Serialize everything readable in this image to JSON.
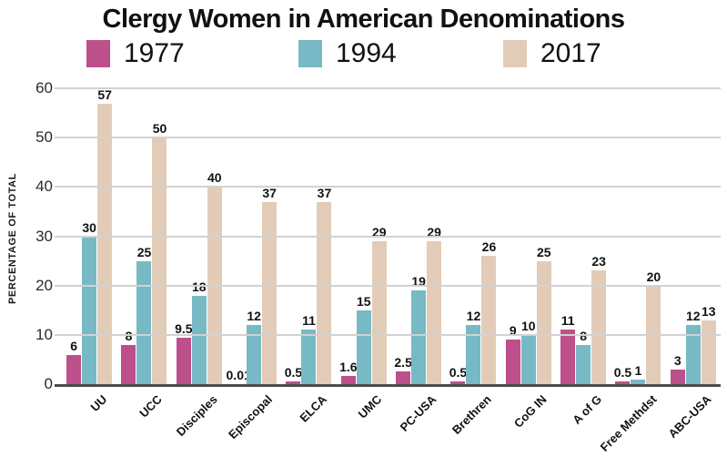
{
  "title": "Clergy Women in American Denominations",
  "y_axis_label": "PERCENTAGE OF TOTAL",
  "chart_data": {
    "type": "bar",
    "title": "Clergy Women in American Denominations",
    "xlabel": "",
    "ylabel": "PERCENTAGE OF TOTAL",
    "ylim": [
      0,
      60
    ],
    "yticks": [
      0,
      10,
      20,
      30,
      40,
      50,
      60
    ],
    "grid": true,
    "legend_position": "top",
    "categories": [
      "UU",
      "UCC",
      "Disciples",
      "Episcopal",
      "ELCA",
      "UMC",
      "PC-USA",
      "Brethren",
      "CoG IN",
      "A of G",
      "Free Methdst",
      "ABC-USA"
    ],
    "series": [
      {
        "name": "1977",
        "color": "#BD4F8A",
        "values": [
          6,
          8,
          9.5,
          0.01,
          0.5,
          1.6,
          2.5,
          0.5,
          9,
          11,
          0.5,
          3
        ]
      },
      {
        "name": "1994",
        "color": "#77B9C5",
        "values": [
          30,
          25,
          18,
          12,
          11,
          15,
          19,
          12,
          10,
          8,
          1,
          12
        ]
      },
      {
        "name": "2017",
        "color": "#E2CCB8",
        "values": [
          57,
          50,
          40,
          37,
          37,
          29,
          29,
          26,
          25,
          23,
          20,
          13
        ]
      }
    ]
  },
  "colors": {
    "gridline": "#D2D2D2",
    "axis": "#4B4B4B",
    "text": "#111111"
  }
}
